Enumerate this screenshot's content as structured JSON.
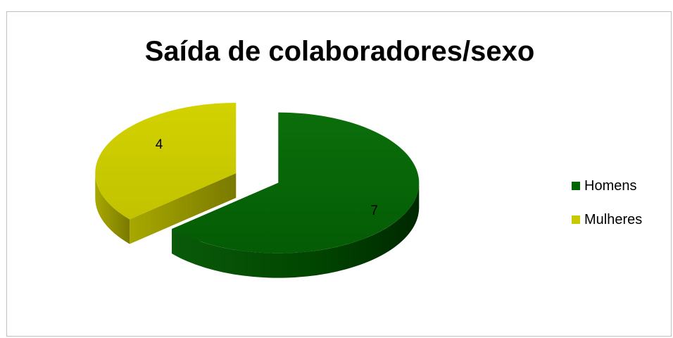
{
  "chart_data": {
    "type": "pie",
    "title": "Saída de colaboradores/sexo",
    "categories": [
      "Homens",
      "Mulheres"
    ],
    "values": [
      7,
      4
    ],
    "colors": [
      "#006400",
      "#c8c800"
    ],
    "data_labels": [
      "7",
      "4"
    ],
    "legend_position": "right",
    "style": "3d-exploded"
  }
}
